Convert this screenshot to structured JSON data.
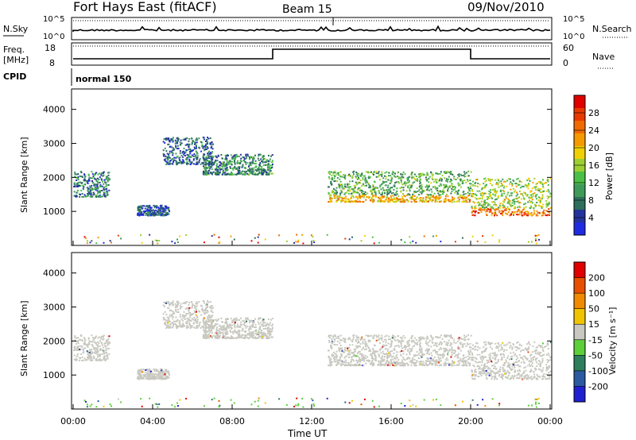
{
  "header": {
    "title": "Fort Hays East (fitACF)",
    "beam": "Beam 15",
    "date": "09/Nov/2010"
  },
  "status_panel": {
    "nsky_label": "N.Sky",
    "nsky_ticks": [
      "10^5",
      "10^0"
    ],
    "nsearch_label": "N.Search",
    "nsearch_ticks": [
      "10^5",
      "10^0"
    ],
    "freq_label": "Freq.",
    "freq_unit": "[MHz]",
    "freq_ticks": [
      "18",
      "8"
    ],
    "nave_label": "Nave",
    "nave_ticks": [
      "60",
      "0"
    ],
    "cpid_label": "CPID",
    "cpid_value": "normal 150"
  },
  "power_panel": {
    "ylabel": "Slant Range [km]",
    "colorbar_label": "Power [dB]",
    "colorbar_ticks": [
      "28",
      "24",
      "20",
      "16",
      "12",
      "8",
      "4"
    ],
    "colors": [
      "#1f2be0",
      "#25339c",
      "#2e6e5a",
      "#3f9a5a",
      "#4bbf48",
      "#9ccf32",
      "#f0d000",
      "#f59a00",
      "#f06a00",
      "#e83a00",
      "#e00000"
    ]
  },
  "velocity_panel": {
    "ylabel": "Velocity [m s⁻¹]",
    "ylabel_range": "Slant Range [km]",
    "colorbar_ticks": [
      "200",
      "100",
      "50",
      "15",
      "-15",
      "-50",
      "-100",
      "-200"
    ],
    "colors": [
      "#2020d0",
      "#2c5aa0",
      "#2e7e5e",
      "#5ccf3a",
      "#c8c8c0",
      "#f0c400",
      "#f08a00",
      "#e85000",
      "#e00000"
    ]
  },
  "xaxis": {
    "label": "Time UT",
    "ticks": [
      "00:00",
      "04:00",
      "08:00",
      "12:00",
      "16:00",
      "20:00",
      "00:00"
    ]
  },
  "chart_data": [
    {
      "type": "heatmap",
      "title": "Fort Hays East (fitACF)",
      "ylabel": "Slant Range [km]",
      "xlabel": "Time UT",
      "x_range_hours": [
        0,
        24
      ],
      "ylim": [
        0,
        4600
      ],
      "yticks": [
        1000,
        2000,
        3000,
        4000
      ],
      "colorbar": "Power [dB]",
      "colorbar_range": [
        0,
        30
      ],
      "scatter_regions": [
        {
          "t_start": 0.0,
          "t_end": 1.8,
          "range_low": 1450,
          "range_high": 2200,
          "power": 8
        },
        {
          "t_start": 3.2,
          "t_end": 4.8,
          "range_low": 900,
          "range_high": 1200,
          "power": 5
        },
        {
          "t_start": 4.5,
          "t_end": 7.0,
          "range_low": 2400,
          "range_high": 3200,
          "power": 6
        },
        {
          "t_start": 6.5,
          "t_end": 10.0,
          "range_low": 2100,
          "range_high": 2700,
          "power": 9
        },
        {
          "t_start": 12.8,
          "t_end": 20.0,
          "range_low": 1300,
          "range_high": 2200,
          "power": 12
        },
        {
          "t_start": 20.0,
          "t_end": 24.0,
          "range_low": 900,
          "range_high": 2000,
          "power": 16
        }
      ]
    },
    {
      "type": "heatmap",
      "title": "Beam 15",
      "ylabel": "Slant Range [km]",
      "xlabel": "Time UT",
      "x_range_hours": [
        0,
        24
      ],
      "ylim": [
        0,
        4600
      ],
      "yticks": [
        1000,
        2000,
        3000,
        4000
      ],
      "colorbar": "Velocity [m s-1]",
      "colorbar_range": [
        -200,
        200
      ],
      "dominant_value": "ground scatter (-15 to 15)"
    }
  ]
}
